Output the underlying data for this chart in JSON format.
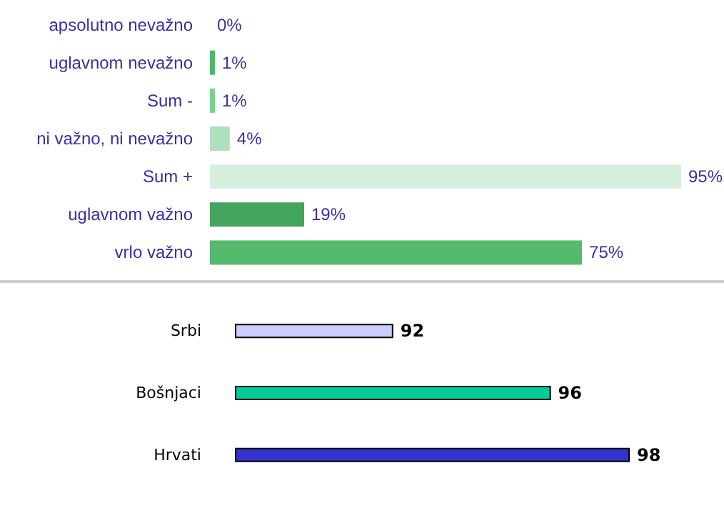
{
  "chart_data": [
    {
      "type": "bar",
      "orientation": "horizontal",
      "categories": [
        "apsolutno nevažno",
        "uglavnom nevažno",
        "Sum -",
        "ni važno, ni nevažno",
        "Sum +",
        "uglavnom važno",
        "vrlo važno"
      ],
      "values": [
        0,
        1,
        1,
        4,
        95,
        19,
        75
      ],
      "value_labels": [
        "0%",
        "1%",
        "1%",
        "4%",
        "95%",
        "19%",
        "75%"
      ],
      "colors": [
        "#55b96e",
        "#4db86a",
        "#7ccf93",
        "#aedfbe",
        "#d7efdd",
        "#43a55c",
        "#55b96e"
      ],
      "grid": false,
      "tick_labels": "y"
    },
    {
      "type": "bar",
      "orientation": "horizontal",
      "categories": [
        "Srbi",
        "Bošnjaci",
        "Hrvati"
      ],
      "values": [
        92,
        96,
        98
      ],
      "colors": [
        "#ccccff",
        "#00cc99",
        "#3333cc"
      ],
      "xlim": [
        88,
        98
      ],
      "data_labels": true,
      "grid": false,
      "tick_labels": "y"
    }
  ]
}
